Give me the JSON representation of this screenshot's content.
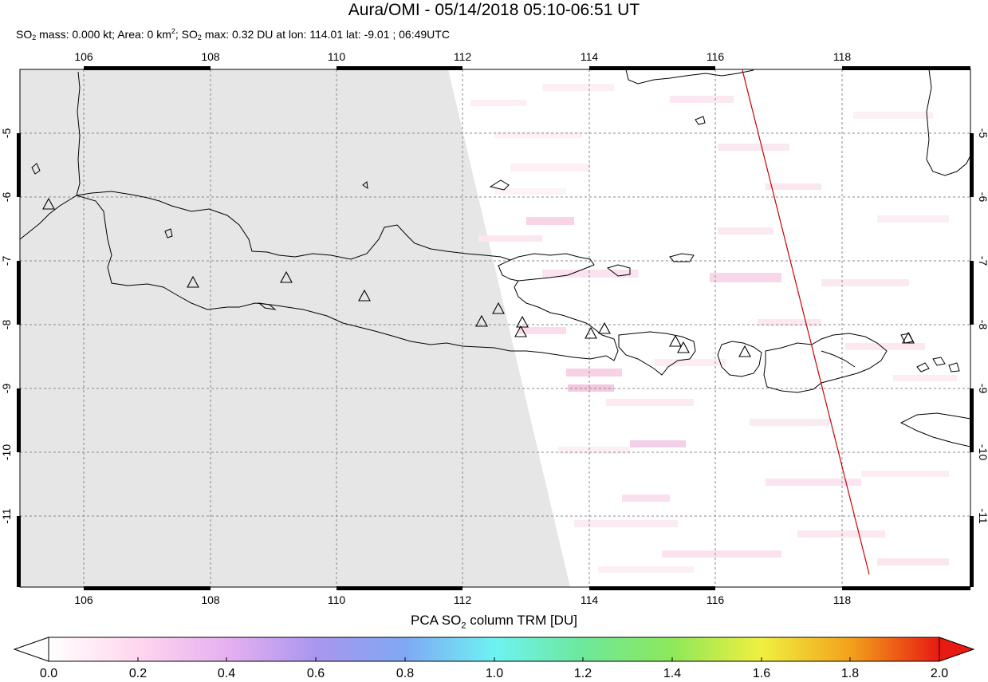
{
  "title": "Aura/OMI - 05/14/2018 05:10-06:51 UT",
  "subtitle": {
    "prefix": "SO",
    "mass_text": " mass: 0.000 kt; Area: 0 km",
    "area_sup": "2",
    "sep": "; SO",
    "max_text": " max: 0.32 DU at lon: 114.01 lat: -9.01 ; 06:49UTC",
    "sub2": "2"
  },
  "map": {
    "lon_range": [
      105,
      120
    ],
    "lat_range": [
      -12.1,
      -4.0
    ],
    "lon_ticks": [
      "106",
      "108",
      "110",
      "112",
      "114",
      "116",
      "118"
    ],
    "lat_ticks": [
      "-5",
      "-6",
      "-7",
      "-8",
      "-9",
      "-10",
      "-11"
    ],
    "volcano_icons": "triangle-icon",
    "orbit_track_color": "#cc0000",
    "no_data_color": "#e6e6e6"
  },
  "colorbar": {
    "title_prefix": "PCA SO",
    "title_sub": "2",
    "title_suffix": " column TRM [DU]",
    "labels": [
      "0.0",
      "0.2",
      "0.4",
      "0.6",
      "0.8",
      "1.0",
      "1.2",
      "1.4",
      "1.6",
      "1.8",
      "2.0"
    ],
    "stops": [
      "#ffffff",
      "#ffd6ee",
      "#e6b0f0",
      "#a996ee",
      "#7fa8f4",
      "#6ef2f2",
      "#6ee89a",
      "#8ee85a",
      "#f0f040",
      "#f2a21c",
      "#e81a12"
    ]
  }
}
